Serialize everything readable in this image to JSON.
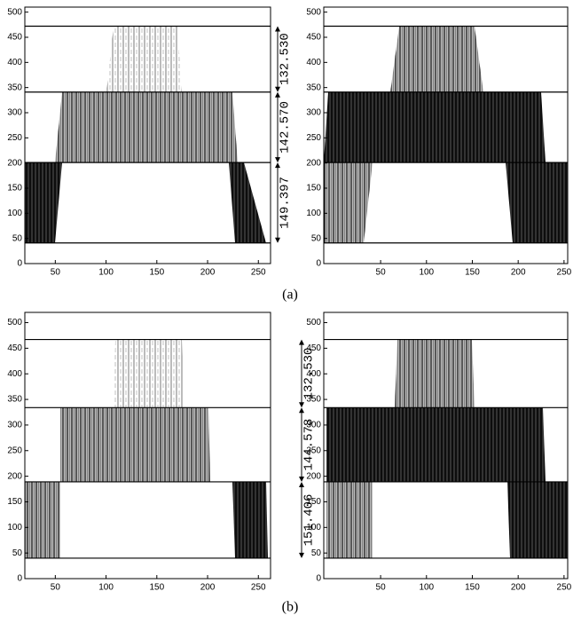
{
  "captions": [
    "(a)",
    "(b)"
  ],
  "chart_data": [
    {
      "type": "scatter",
      "xlim": [
        20,
        262
      ],
      "ylim": [
        0,
        510
      ],
      "xticks": [
        50,
        100,
        150,
        200,
        250
      ],
      "yticks": [
        0,
        50,
        100,
        150,
        200,
        250,
        300,
        350,
        400,
        450,
        500
      ],
      "levels": [
        41,
        201,
        341,
        472
      ],
      "dimensions": [
        {
          "value": 132.53,
          "label": "132.530"
        },
        {
          "value": 142.57,
          "label": "142.570"
        },
        {
          "value": 149.397,
          "label": "149.397"
        }
      ],
      "color": "#000000"
    },
    {
      "type": "scatter",
      "xlim": [
        -12,
        254
      ],
      "ylim": [
        0,
        510
      ],
      "xticks": [
        50,
        100,
        150,
        200,
        250
      ],
      "yticks": [
        0,
        50,
        100,
        150,
        200,
        250,
        300,
        350,
        400,
        450,
        500
      ],
      "levels": [
        41,
        201,
        341,
        472
      ],
      "color": "#000000"
    },
    {
      "type": "scatter",
      "xlim": [
        20,
        262
      ],
      "ylim": [
        0,
        520
      ],
      "xticks": [
        50,
        100,
        150,
        200,
        250
      ],
      "yticks": [
        0,
        50,
        100,
        150,
        200,
        250,
        300,
        350,
        400,
        450,
        500
      ],
      "levels": [
        40,
        189,
        334,
        467
      ],
      "dimensions": [
        {
          "value": 132.53,
          "label": "132.530"
        },
        {
          "value": 144.578,
          "label": "144.578"
        },
        {
          "value": 151.406,
          "label": "151.406"
        }
      ],
      "color": "#000000"
    },
    {
      "type": "scatter",
      "xlim": [
        -12,
        254
      ],
      "ylim": [
        0,
        520
      ],
      "xticks": [
        50,
        100,
        150,
        200,
        250
      ],
      "yticks": [
        0,
        50,
        100,
        150,
        200,
        250,
        300,
        350,
        400,
        450,
        500
      ],
      "levels": [
        40,
        189,
        334,
        467
      ],
      "color": "#000000"
    }
  ]
}
